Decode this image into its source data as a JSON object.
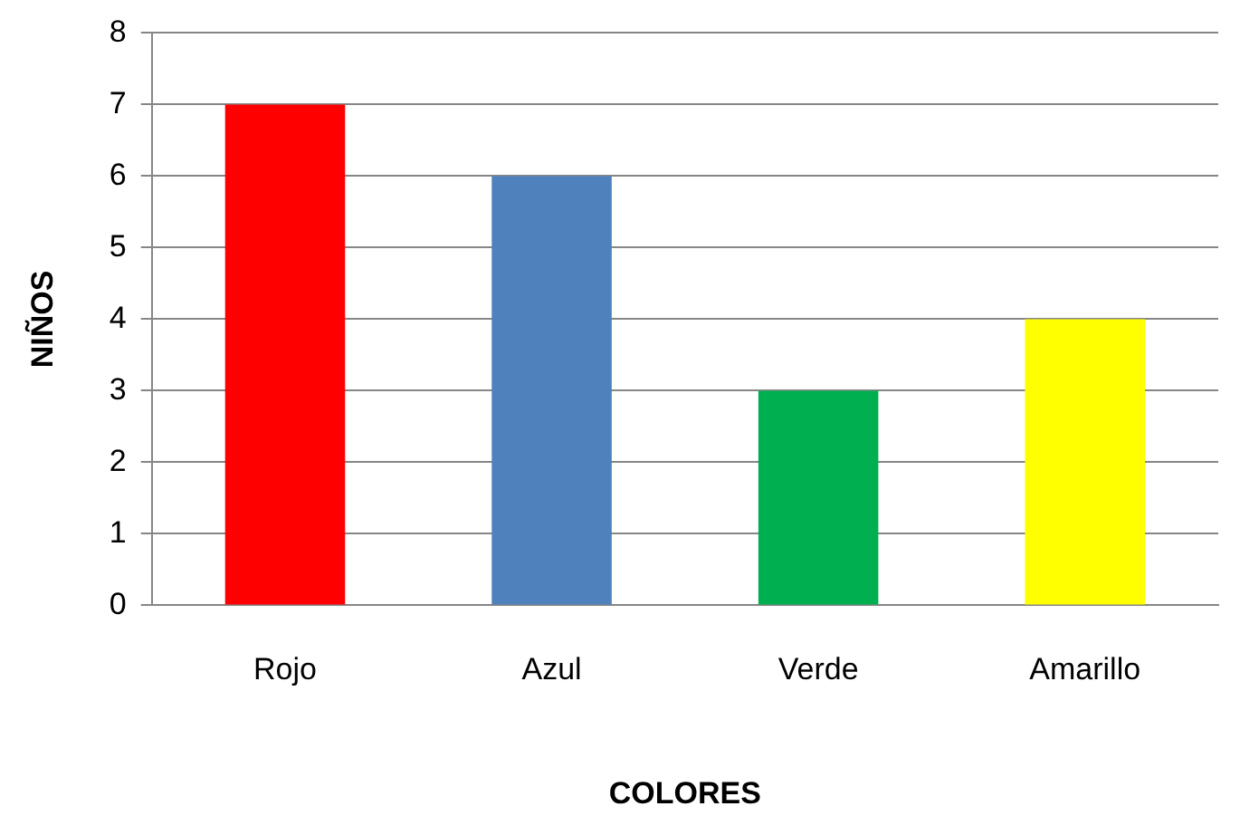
{
  "chart_data": {
    "type": "bar",
    "xlabel": "COLORES",
    "ylabel": "NIÑOS",
    "categories": [
      "Rojo",
      "Azul",
      "Verde",
      "Amarillo"
    ],
    "values": [
      7,
      6,
      3,
      4
    ],
    "colors": [
      "#ff0000",
      "#4f81bd",
      "#00b050",
      "#ffff00"
    ],
    "ylim": [
      0,
      8
    ],
    "yticks": [
      0,
      1,
      2,
      3,
      4,
      5,
      6,
      7,
      8
    ],
    "grid": "y",
    "legend": false
  }
}
